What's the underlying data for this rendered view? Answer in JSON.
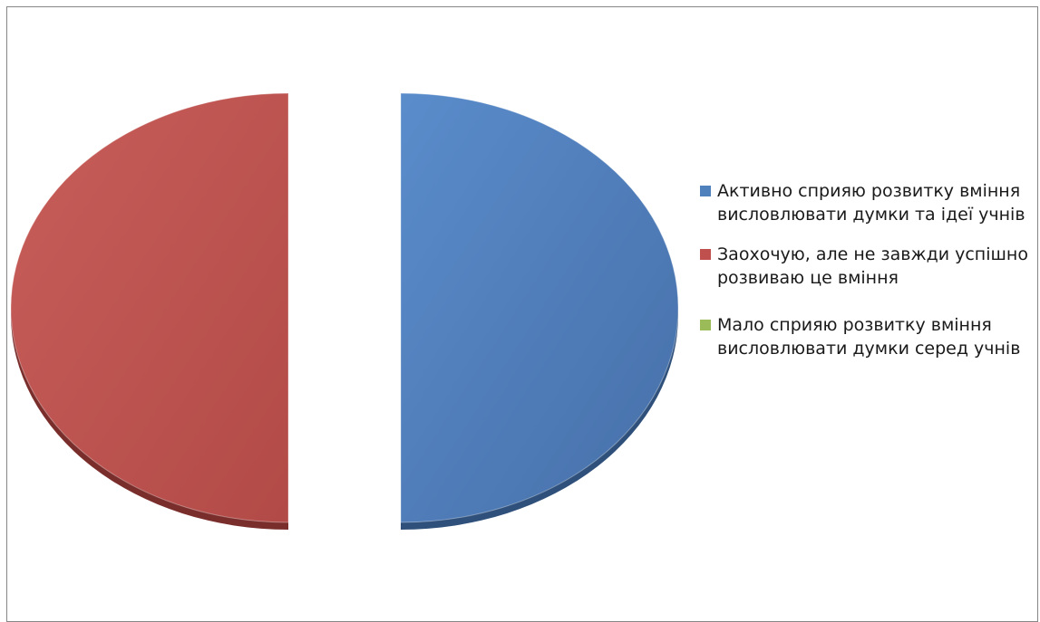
{
  "chart_data": {
    "type": "pie",
    "title": "",
    "slices": [
      {
        "label": "Активно сприяю розвитку вміння висловлювати думки та ідеї учнів",
        "value": 50,
        "color": "#4f81bd"
      },
      {
        "label": "Заохочую, але не завжди успішно розвиваю це вміння",
        "value": 50,
        "color": "#c0504d"
      },
      {
        "label": "Мало сприяю розвитку вміння висловлювати думки серед учнів",
        "value": 0,
        "color": "#9bbb59"
      }
    ],
    "legend_position": "right",
    "exploded": true
  },
  "legend": {
    "items": [
      {
        "label": "Активно сприяю розвитку вміння висловлювати думки та ідеї учнів",
        "color": "#4f81bd"
      },
      {
        "label": "Заохочую, але не завжди успішно розвиваю це вміння",
        "color": "#c0504d"
      },
      {
        "label": "Мало сприяю розвитку вміння висловлювати думки серед учнів",
        "color": "#9bbb59"
      }
    ]
  }
}
